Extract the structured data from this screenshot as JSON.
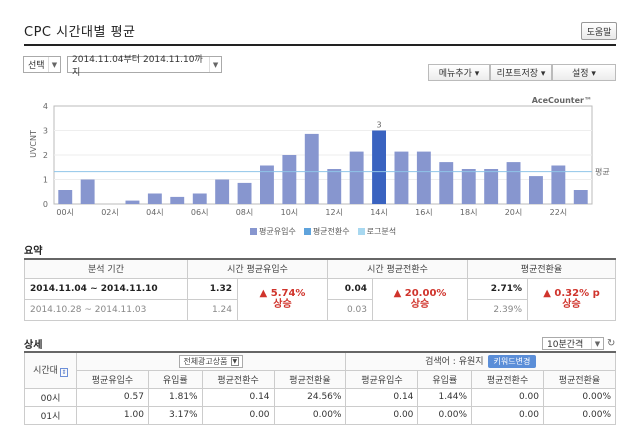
{
  "header": {
    "title": "CPC 시간대별 평균",
    "help_label": "도움말"
  },
  "controls": {
    "range_select": "선택",
    "date_start": "2014.11.04",
    "date_from_suffix": "부터",
    "date_end": "2014.11.10",
    "date_to_suffix": "까지",
    "menu_add": "메뉴추가 ▾",
    "report_save": "리포트저장 ▾",
    "settings": "설정 ▾"
  },
  "chart_data": {
    "type": "bar",
    "brand": "AceCounter™",
    "ylabel": "UVCNT",
    "ylim": [
      0,
      4
    ],
    "yticks": [
      "0",
      "1",
      "2",
      "3",
      "4"
    ],
    "categories": [
      "00",
      "01",
      "02",
      "03",
      "04",
      "05",
      "06",
      "07",
      "08",
      "09",
      "10",
      "11",
      "12",
      "13",
      "14",
      "15",
      "16",
      "17",
      "18",
      "19",
      "20",
      "21",
      "22",
      "23"
    ],
    "xtick_labels": [
      "00시",
      "02시",
      "04시",
      "06시",
      "08시",
      "10시",
      "12시",
      "14시",
      "16시",
      "18시",
      "20시",
      "22시"
    ],
    "values": [
      0.57,
      1.0,
      0.0,
      0.14,
      0.43,
      0.29,
      0.43,
      1.0,
      0.86,
      1.57,
      2.0,
      2.86,
      1.43,
      2.14,
      3.0,
      2.14,
      2.14,
      1.71,
      1.43,
      1.43,
      1.71,
      1.14,
      1.57,
      0.57
    ],
    "highlight_index": 14,
    "highlight_label": "3",
    "average": 1.32,
    "average_label": "평균",
    "bar_color": "#8796cf",
    "highlight_color": "#3a63c0",
    "avg_color": "#8fc4e8",
    "legend": [
      {
        "name": "평균유입수",
        "color": "#8796cf"
      },
      {
        "name": "평균전환수",
        "color": "#5fa3dc"
      },
      {
        "name": "로그분석",
        "color": "#a8d8f0"
      }
    ]
  },
  "summary": {
    "title": "요약",
    "headers": [
      "분석 기간",
      "시간 평균유입수",
      "시간 평균전환수",
      "평균전환율"
    ],
    "current_period": "2014.11.04 ~ 2014.11.10",
    "previous_period": "2014.10.28 ~ 2014.11.03",
    "visits": {
      "current": "1.32",
      "previous": "1.24",
      "change": "5.74%",
      "label": "상승"
    },
    "conversions": {
      "current": "0.04",
      "previous": "0.03",
      "change": "20.00%",
      "label": "상승"
    },
    "rate": {
      "current": "2.71%",
      "previous": "2.39%",
      "change": "0.32% p",
      "label": "상승"
    }
  },
  "detail": {
    "title": "상세",
    "interval": "10분간격",
    "time_header": "시간대",
    "group1_select": "전체광고상품",
    "group2_label": "검색어 : 유원지",
    "keyword_btn": "키워드변경",
    "columns": [
      "평균유입수",
      "유입률",
      "평균전환수",
      "평균전환율",
      "평균유입수",
      "유입률",
      "평균전환수",
      "평균전환율"
    ],
    "rows": [
      {
        "time": "00시",
        "cells": [
          "0.57",
          "1.81%",
          "0.14",
          "24.56%",
          "0.14",
          "1.44%",
          "0.00",
          "0.00%"
        ]
      },
      {
        "time": "01시",
        "cells": [
          "1.00",
          "3.17%",
          "0.00",
          "0.00%",
          "0.00",
          "0.00%",
          "0.00",
          "0.00%"
        ]
      }
    ]
  }
}
